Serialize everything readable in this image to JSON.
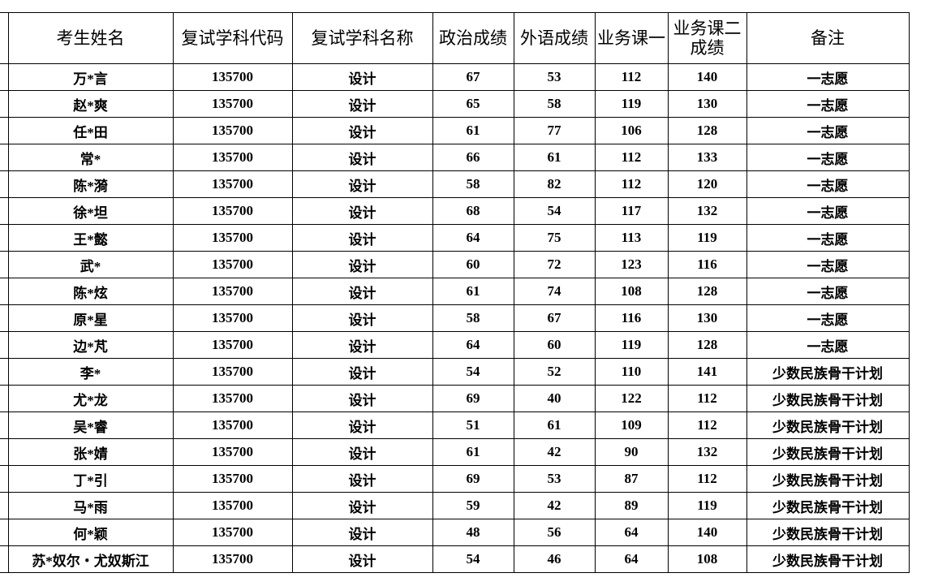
{
  "table": {
    "header": [
      "考生姓名",
      "复试学科代码",
      "复试学科名称",
      "政治成绩",
      "外语成绩",
      "业务课一",
      "业务课二成绩",
      "备注"
    ],
    "rows": [
      [
        "万*言",
        135700,
        "设计",
        67,
        53,
        112,
        140,
        "一志愿"
      ],
      [
        "赵*爽",
        135700,
        "设计",
        65,
        58,
        119,
        130,
        "一志愿"
      ],
      [
        "任*田",
        135700,
        "设计",
        61,
        77,
        106,
        128,
        "一志愿"
      ],
      [
        "常*",
        135700,
        "设计",
        66,
        61,
        112,
        133,
        "一志愿"
      ],
      [
        "陈*漪",
        135700,
        "设计",
        58,
        82,
        112,
        120,
        "一志愿"
      ],
      [
        "徐*坦",
        135700,
        "设计",
        68,
        54,
        117,
        132,
        "一志愿"
      ],
      [
        "王*懿",
        135700,
        "设计",
        64,
        75,
        113,
        119,
        "一志愿"
      ],
      [
        "武*",
        135700,
        "设计",
        60,
        72,
        123,
        116,
        "一志愿"
      ],
      [
        "陈*炫",
        135700,
        "设计",
        61,
        74,
        108,
        128,
        "一志愿"
      ],
      [
        "原*星",
        135700,
        "设计",
        58,
        67,
        116,
        130,
        "一志愿"
      ],
      [
        "边*芃",
        135700,
        "设计",
        64,
        60,
        119,
        128,
        "一志愿"
      ],
      [
        "李*",
        135700,
        "设计",
        54,
        52,
        110,
        141,
        "少数民族骨干计划"
      ],
      [
        "尤*龙",
        135700,
        "设计",
        69,
        40,
        122,
        112,
        "少数民族骨干计划"
      ],
      [
        "吴*睿",
        135700,
        "设计",
        51,
        61,
        109,
        112,
        "少数民族骨干计划"
      ],
      [
        "张*婧",
        135700,
        "设计",
        61,
        42,
        90,
        132,
        "少数民族骨干计划"
      ],
      [
        "丁*引",
        135700,
        "设计",
        69,
        53,
        87,
        112,
        "少数民族骨干计划"
      ],
      [
        "马*雨",
        135700,
        "设计",
        59,
        42,
        89,
        119,
        "少数民族骨干计划"
      ],
      [
        "何*颖",
        135700,
        "设计",
        48,
        56,
        64,
        140,
        "少数民族骨干计划"
      ],
      [
        "苏*奴尔・尤奴斯江",
        135700,
        "设计",
        54,
        46,
        64,
        108,
        "少数民族骨干计划"
      ]
    ]
  }
}
